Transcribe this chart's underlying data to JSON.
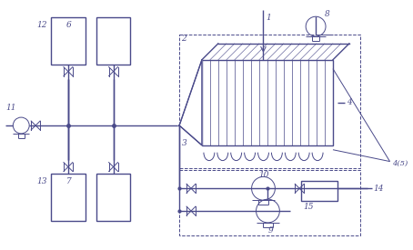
{
  "bg_color": "#ffffff",
  "line_color": "#4a4a8a",
  "lw": 1.0,
  "tlw": 0.7
}
